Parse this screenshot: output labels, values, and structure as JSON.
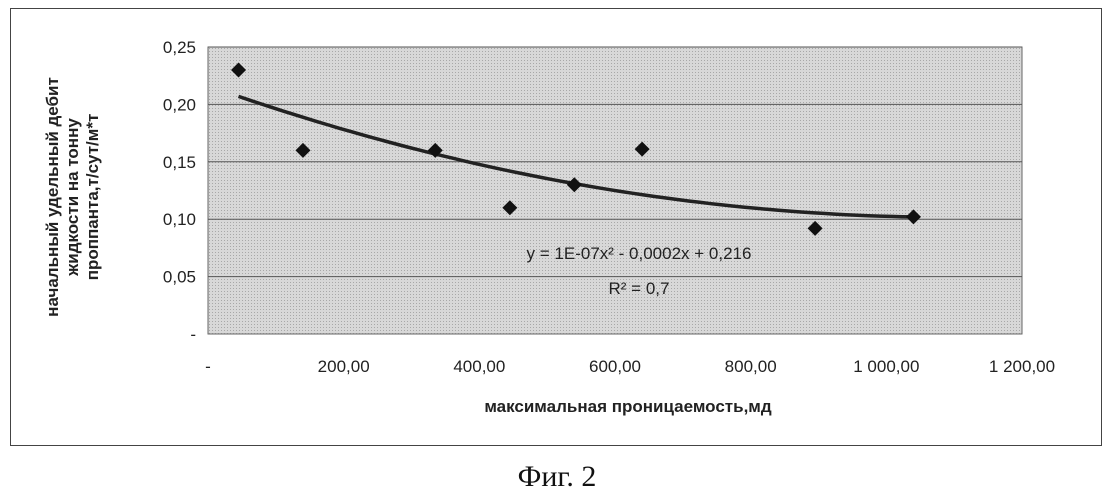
{
  "chart_data": {
    "type": "scatter",
    "xlabel": "максимальная проницаемость,мд",
    "ylabel_lines": [
      "начальный удельный дебит",
      "жидкости на тонну",
      "проппанта,т/сут/м*т"
    ],
    "xlim": [
      0,
      1200
    ],
    "ylim": [
      0,
      0.25
    ],
    "x_ticks": [
      0,
      200,
      400,
      600,
      800,
      1000,
      1200
    ],
    "x_tick_labels": [
      "-",
      "200,00",
      "400,00",
      "600,00",
      "800,00",
      "1 000,00",
      "1 200,00"
    ],
    "y_ticks": [
      0,
      0.05,
      0.1,
      0.15,
      0.2,
      0.25
    ],
    "y_tick_labels": [
      "-",
      "0,05",
      "0,10",
      "0,15",
      "0,20",
      "0,25"
    ],
    "grid": true,
    "series": [
      {
        "points": [
          {
            "x": 45,
            "y": 0.23
          },
          {
            "x": 140,
            "y": 0.16
          },
          {
            "x": 335,
            "y": 0.16
          },
          {
            "x": 445,
            "y": 0.11
          },
          {
            "x": 540,
            "y": 0.13
          },
          {
            "x": 640,
            "y": 0.161
          },
          {
            "x": 895,
            "y": 0.092
          },
          {
            "x": 1040,
            "y": 0.102
          }
        ]
      }
    ],
    "trendline": {
      "type": "polynomial",
      "x_range": [
        45,
        1040
      ],
      "equation_label": "y = 1E-07x² - 0,0002x + 0,216",
      "r2_label": "R² = 0,7"
    },
    "colors": {
      "plot_background": "#cfcfcf",
      "marker": "#111111",
      "trend": "#222222",
      "grid": "#555555"
    }
  },
  "caption": "Фиг. 2"
}
